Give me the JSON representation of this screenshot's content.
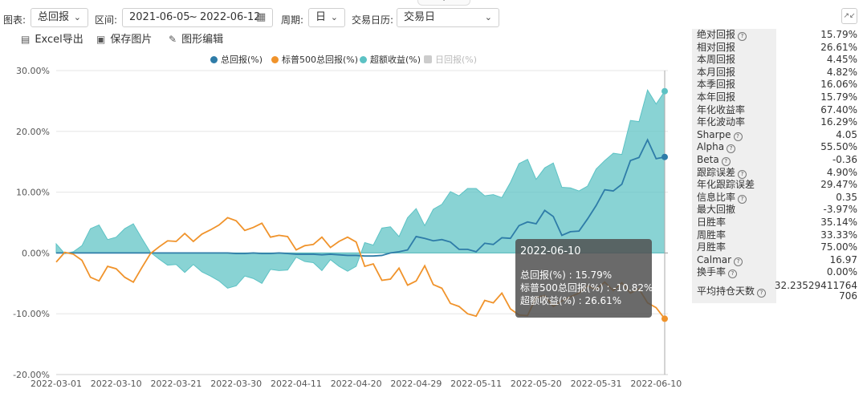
{
  "toolbar": {
    "chart_label": "图表:",
    "chart_type": "总回报",
    "range_label": "区间:",
    "start_date": "2021-06-05",
    "range_sep": "~",
    "end_date": "2022-06-12",
    "period_label": "周期:",
    "period_value": "日",
    "calendar_label": "交易日历:",
    "calendar_value": "交易日"
  },
  "actions": {
    "excel": "Excel导出",
    "save_image": "保存图片",
    "edit_chart": "图形编辑"
  },
  "colors": {
    "total": "#2e7ca8",
    "benchmark": "#f0932b",
    "excess": "#5cc2c4",
    "daily_disabled": "#cccccc"
  },
  "tooltip": {
    "date": "2022-06-10",
    "rows": [
      "总回报(%) : 15.79%",
      "标普500总回报(%) : -10.82%",
      "超额收益(%) : 26.61%"
    ]
  },
  "stats": [
    {
      "k": "绝对回报",
      "v": "15.79%",
      "help": true
    },
    {
      "k": "相对回报",
      "v": "26.61%",
      "help": false
    },
    {
      "k": "本周回报",
      "v": "4.45%",
      "help": false
    },
    {
      "k": "本月回报",
      "v": "4.82%",
      "help": false
    },
    {
      "k": "本季回报",
      "v": "16.06%",
      "help": false
    },
    {
      "k": "本年回报",
      "v": "15.79%",
      "help": false
    },
    {
      "k": "年化收益率",
      "v": "67.40%",
      "help": false
    },
    {
      "k": "年化波动率",
      "v": "16.29%",
      "help": false
    },
    {
      "k": "Sharpe",
      "v": "4.05",
      "help": true
    },
    {
      "k": "Alpha",
      "v": "55.50%",
      "help": true
    },
    {
      "k": "Beta",
      "v": "-0.36",
      "help": true
    },
    {
      "k": "跟踪误差",
      "v": "4.90%",
      "help": true
    },
    {
      "k": "年化跟踪误差",
      "v": "29.47%",
      "help": false
    },
    {
      "k": "信息比率",
      "v": "0.35",
      "help": true
    },
    {
      "k": "最大回撤",
      "v": "-3.97%",
      "help": false
    },
    {
      "k": "日胜率",
      "v": "35.14%",
      "help": false
    },
    {
      "k": "周胜率",
      "v": "33.33%",
      "help": false
    },
    {
      "k": "月胜率",
      "v": "75.00%",
      "help": false
    },
    {
      "k": "Calmar",
      "v": "16.97",
      "help": true
    },
    {
      "k": "换手率",
      "v": "0.00%",
      "help": true
    },
    {
      "k": "平均持仓天数",
      "v": "32.23529411764706",
      "help": true
    }
  ],
  "chart_data": {
    "type": "line",
    "title": "",
    "xlabel": "",
    "ylabel": "",
    "ylim": [
      -20,
      30
    ],
    "yticks": [
      -20,
      -10,
      0,
      10,
      20,
      30
    ],
    "ytick_labels": [
      "-20.00%",
      "-10.00%",
      "0.00%",
      "10.00%",
      "20.00%",
      "30.00%"
    ],
    "xtick_labels": [
      "2022-03-01",
      "2022-03-10",
      "2022-03-21",
      "2022-03-30",
      "2022-04-11",
      "2022-04-20",
      "2022-04-29",
      "2022-05-11",
      "2022-05-20",
      "2022-05-31",
      "2022-06-10"
    ],
    "xtick_index": [
      0,
      7,
      14,
      21,
      28,
      35,
      42,
      49,
      56,
      63,
      70
    ],
    "legend": [
      "总回报(%)",
      "标普500总回报(%)",
      "超额收益(%)",
      "日回报(%)"
    ],
    "legend_position": "top",
    "grid": true,
    "series": [
      {
        "name": "总回报(%)",
        "values": [
          0,
          0,
          0,
          0,
          0,
          0,
          0,
          0,
          0,
          0,
          0,
          0,
          0,
          0,
          0,
          0,
          0,
          0,
          0,
          0,
          0,
          -0.1,
          -0.1,
          0,
          -0.1,
          -0.1,
          0,
          -0.1,
          -0.2,
          -0.2,
          -0.2,
          -0.3,
          -0.2,
          -0.3,
          -0.4,
          -0.4,
          -0.5,
          -0.5,
          -0.4,
          0,
          0.2,
          0.5,
          2.7,
          2.4,
          2.0,
          2.2,
          1.8,
          0.6,
          0.6,
          0.2,
          1.6,
          1.4,
          2.5,
          2.4,
          4.5,
          5.1,
          4.8,
          7.0,
          6.0,
          2.9,
          3.5,
          3.6,
          5.6,
          7.8,
          10.4,
          10.2,
          11.3,
          15.2,
          15.7,
          18.6,
          15.5,
          15.79
        ]
      },
      {
        "name": "标普500总回报(%)",
        "values": [
          -1.5,
          0.1,
          -0.2,
          -1.2,
          -4.0,
          -4.6,
          -2.2,
          -2.6,
          -4.0,
          -4.8,
          -2.4,
          -0.1,
          1.0,
          2.0,
          1.9,
          3.2,
          1.9,
          3.1,
          3.8,
          4.6,
          5.8,
          5.3,
          3.7,
          4.2,
          4.9,
          2.6,
          2.9,
          2.7,
          0.5,
          1.2,
          1.4,
          2.6,
          0.9,
          1.9,
          2.6,
          1.8,
          -2.2,
          -1.8,
          -4.5,
          -4.3,
          -2.5,
          -5.3,
          -4.6,
          -2.1,
          -5.2,
          -5.8,
          -8.3,
          -8.8,
          -10.0,
          -10.4,
          -7.8,
          -8.2,
          -6.6,
          -9.2,
          -10.2,
          -10.3,
          -7.3,
          -7.0,
          -8.8,
          -7.9,
          -7.2,
          -6.6,
          -5.4,
          -6.0,
          -4.8,
          -6.2,
          -4.9,
          -6.6,
          -5.9,
          -8.2,
          -9.0,
          -10.82
        ]
      },
      {
        "name": "超额收益(%)",
        "values": [
          1.5,
          -0.1,
          0.2,
          1.2,
          4.0,
          4.6,
          2.2,
          2.6,
          4.0,
          4.8,
          2.4,
          0.1,
          -1.0,
          -2.0,
          -1.9,
          -3.2,
          -1.9,
          -3.1,
          -3.8,
          -4.6,
          -5.8,
          -5.4,
          -3.8,
          -4.2,
          -5.0,
          -2.7,
          -2.9,
          -2.8,
          -0.7,
          -1.4,
          -1.6,
          -2.9,
          -1.1,
          -2.2,
          -3.0,
          -2.2,
          1.7,
          1.3,
          4.1,
          4.3,
          2.7,
          5.8,
          7.3,
          4.5,
          7.2,
          8.0,
          10.1,
          9.4,
          10.6,
          10.6,
          9.4,
          9.6,
          9.1,
          11.6,
          14.7,
          15.4,
          12.1,
          14.0,
          14.8,
          10.8,
          10.7,
          10.2,
          11.0,
          13.8,
          15.2,
          16.4,
          16.2,
          21.8,
          21.6,
          26.8,
          24.5,
          26.61
        ]
      }
    ]
  }
}
